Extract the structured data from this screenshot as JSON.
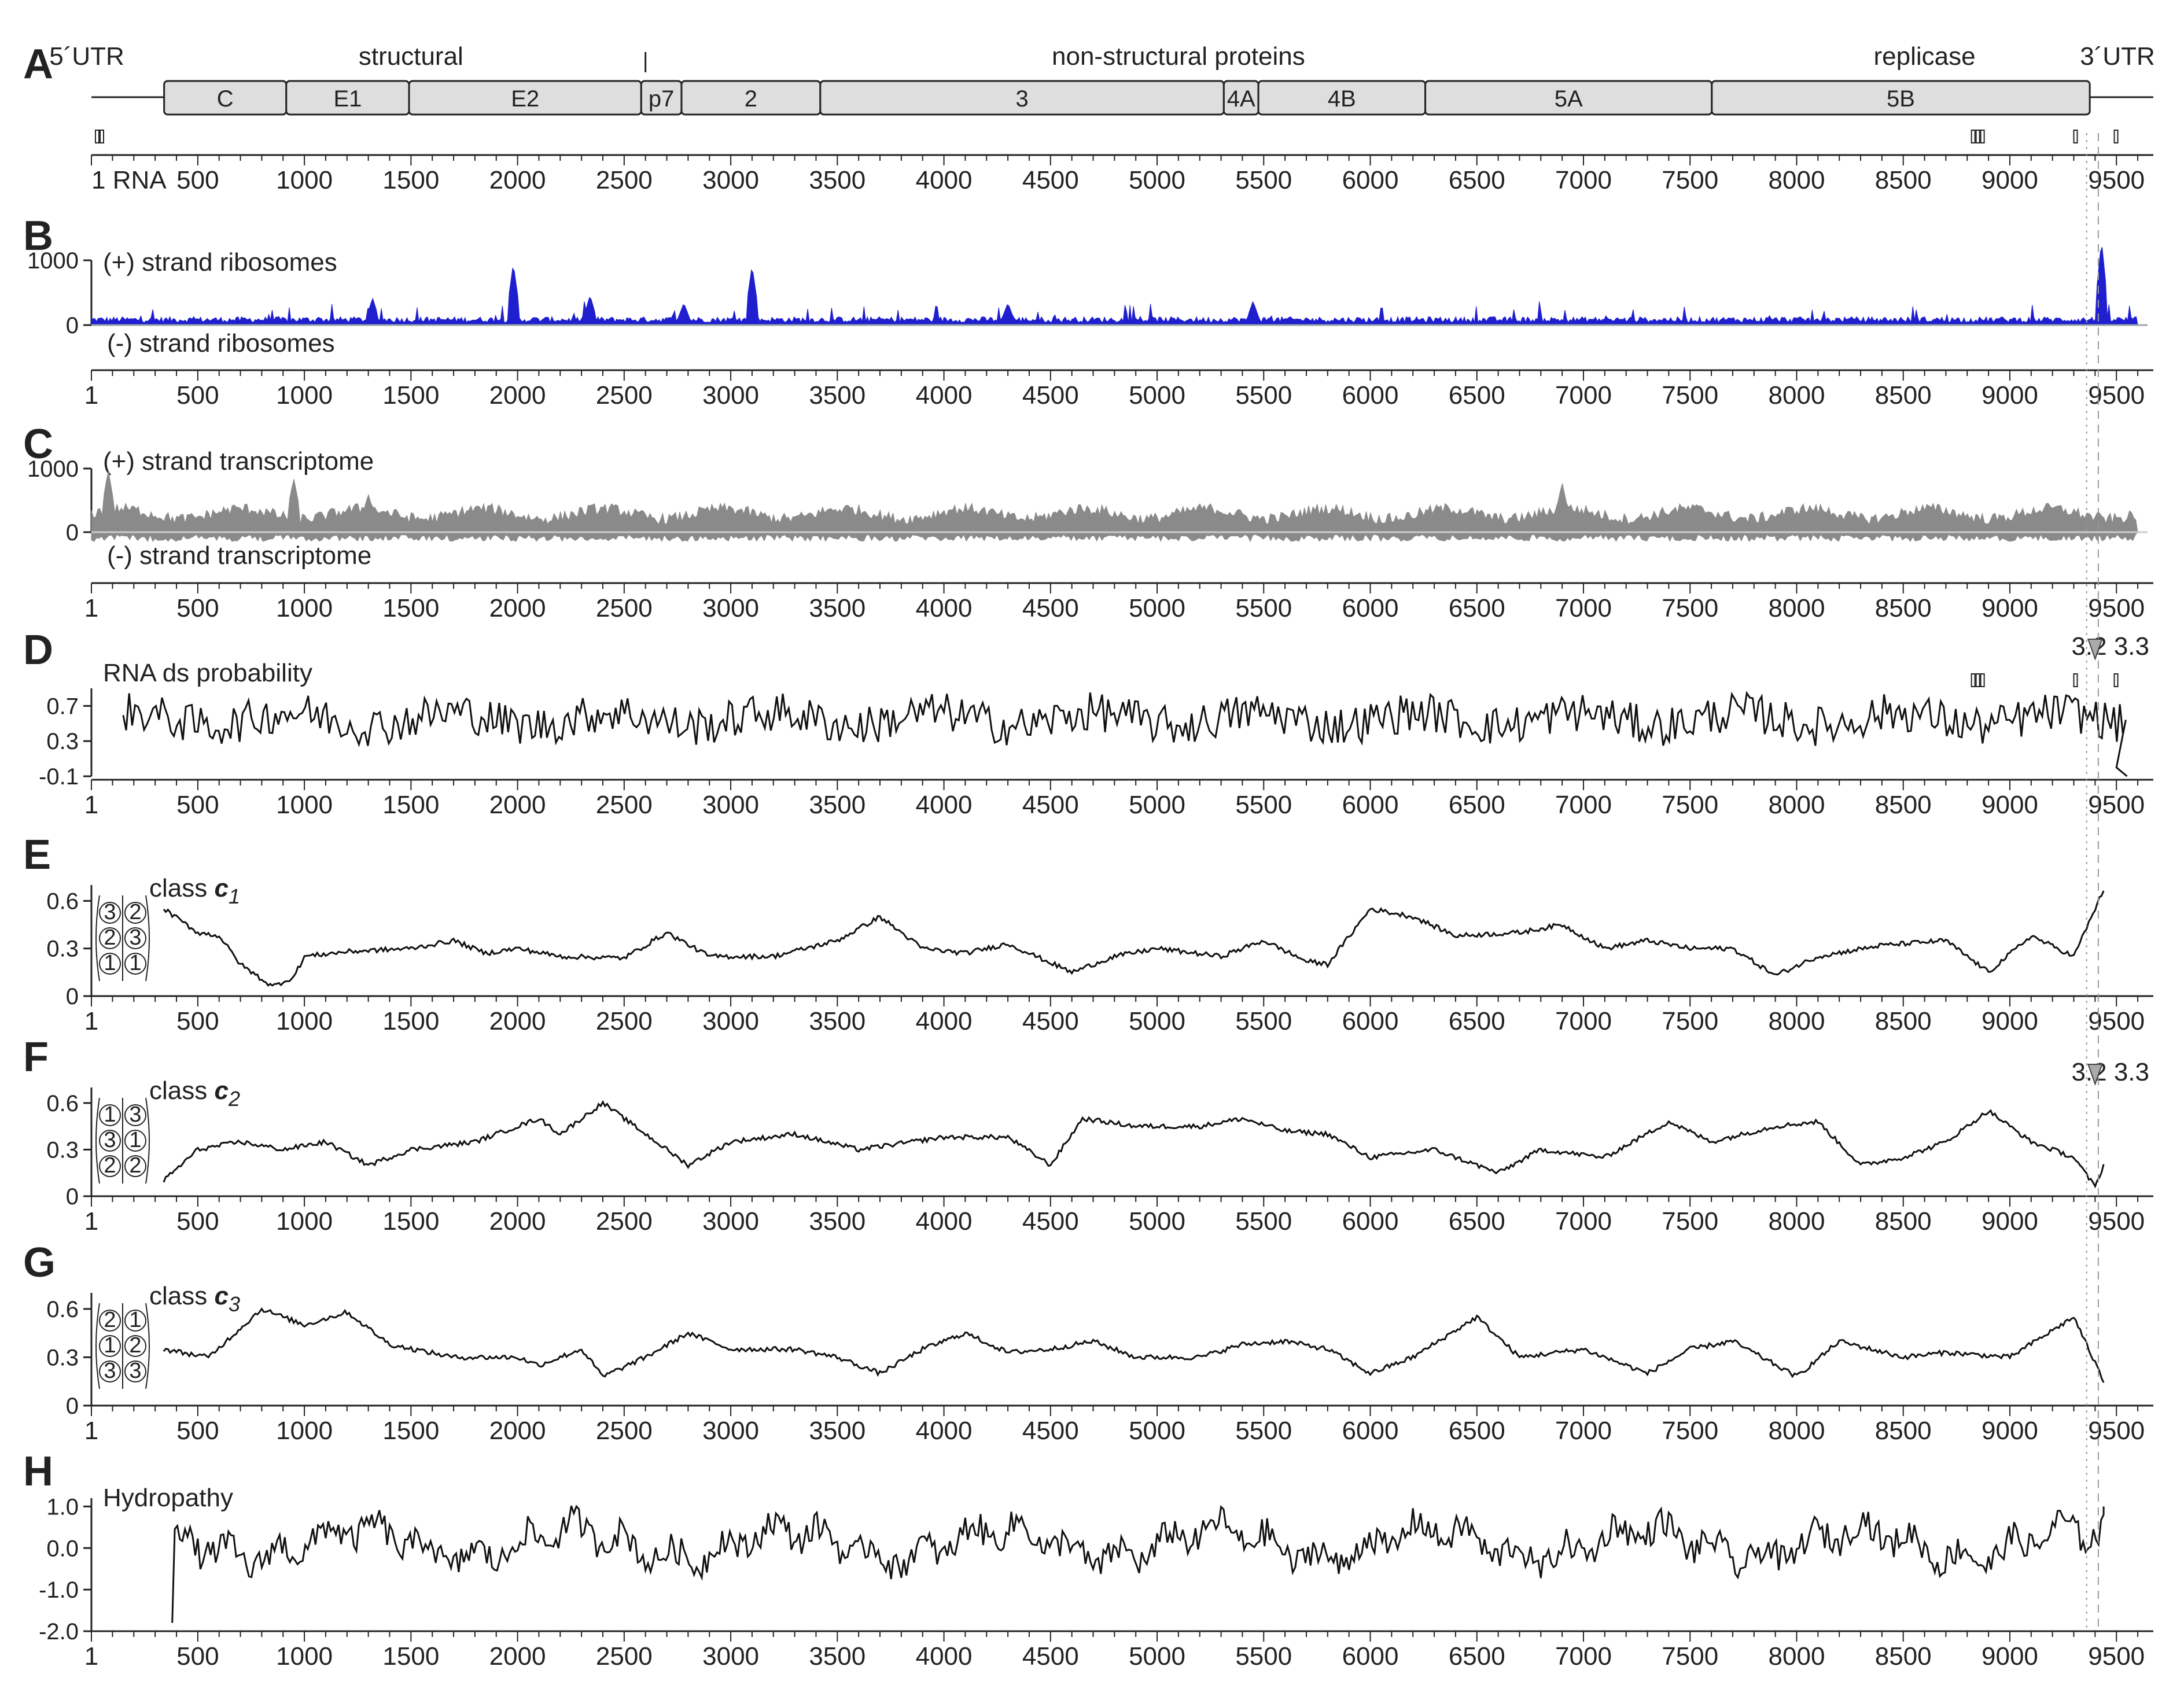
{
  "chart_data": [
    {
      "panel": "A",
      "type": "genome-map",
      "top_labels": [
        {
          "text": "5´UTR",
          "x": 150
        },
        {
          "text": "structural",
          "x": 1500
        },
        {
          "text": "non-structural proteins",
          "x": 5100
        },
        {
          "text": "replicase",
          "x": 8600
        },
        {
          "text": "3´UTR",
          "x": 9500
        }
      ],
      "genes": [
        {
          "name": "C",
          "start": 342,
          "end": 915
        },
        {
          "name": "E1",
          "start": 915,
          "end": 1491
        },
        {
          "name": "E2",
          "start": 1491,
          "end": 2580
        },
        {
          "name": "p7",
          "start": 2580,
          "end": 2769
        },
        {
          "name": "2",
          "start": 2769,
          "end": 3420
        },
        {
          "name": "3",
          "start": 3420,
          "end": 5313
        },
        {
          "name": "4A",
          "start": 5313,
          "end": 5475
        },
        {
          "name": "4B",
          "start": 5475,
          "end": 6258
        },
        {
          "name": "5A",
          "start": 6258,
          "end": 7602
        },
        {
          "name": "5B",
          "start": 7602,
          "end": 9375
        }
      ],
      "genome_length": 9646,
      "axis_label_first": "1 RNA",
      "ticks": [
        500,
        1000,
        1500,
        2000,
        2500,
        3000,
        3500,
        4000,
        4500,
        5000,
        5500,
        6000,
        6500,
        7000,
        7500,
        8000,
        8500,
        9000,
        9500
      ]
    },
    {
      "panel": "B",
      "type": "area",
      "series": [
        {
          "name": "(+) strand ribosomes"
        },
        {
          "name": "(-) strand ribosomes"
        }
      ],
      "yticks": [
        "1000",
        "0"
      ],
      "ylim": [
        0,
        1000
      ],
      "color": "#1f1fd0",
      "peaks": [
        [
          1320,
          420
        ],
        [
          1980,
          950
        ],
        [
          2340,
          460
        ],
        [
          2780,
          340
        ],
        [
          3100,
          920
        ],
        [
          4300,
          340
        ],
        [
          5450,
          370
        ],
        [
          9430,
          1300
        ]
      ]
    },
    {
      "panel": "C",
      "type": "area",
      "series": [
        {
          "name": "(+) strand transcriptome"
        },
        {
          "name": "(-) strand transcriptome"
        }
      ],
      "yticks": [
        "1000",
        "0"
      ],
      "ylim": [
        0,
        1000
      ],
      "color": "#8a8a8a",
      "peaks": [
        [
          80,
          980
        ],
        [
          950,
          850
        ],
        [
          1300,
          600
        ],
        [
          6900,
          780
        ]
      ]
    },
    {
      "panel": "D",
      "type": "line",
      "series": [
        {
          "name": "RNA ds probability"
        }
      ],
      "yticks": [
        "0.7",
        "0.3",
        "-0.1"
      ],
      "ylim": [
        -0.1,
        0.9
      ],
      "range": [
        150,
        9550
      ],
      "annotation": "3.2 3.3"
    },
    {
      "panel": "E",
      "type": "line",
      "series": [
        {
          "name": "class c1"
        }
      ],
      "yticks": [
        "0.6",
        "0.3",
        "0"
      ],
      "ylim": [
        0,
        0.7
      ],
      "range": [
        340,
        9440
      ],
      "points": [
        [
          340,
          0.55
        ],
        [
          500,
          0.4
        ],
        [
          600,
          0.38
        ],
        [
          700,
          0.2
        ],
        [
          850,
          0.06
        ],
        [
          950,
          0.12
        ],
        [
          1000,
          0.25
        ],
        [
          1200,
          0.28
        ],
        [
          1500,
          0.3
        ],
        [
          1700,
          0.35
        ],
        [
          1850,
          0.27
        ],
        [
          2000,
          0.3
        ],
        [
          2200,
          0.25
        ],
        [
          2500,
          0.24
        ],
        [
          2700,
          0.4
        ],
        [
          2900,
          0.25
        ],
        [
          3200,
          0.25
        ],
        [
          3500,
          0.35
        ],
        [
          3700,
          0.5
        ],
        [
          3900,
          0.3
        ],
        [
          4100,
          0.27
        ],
        [
          4300,
          0.33
        ],
        [
          4600,
          0.15
        ],
        [
          4800,
          0.25
        ],
        [
          5000,
          0.3
        ],
        [
          5300,
          0.25
        ],
        [
          5500,
          0.35
        ],
        [
          5700,
          0.22
        ],
        [
          5800,
          0.2
        ],
        [
          6000,
          0.55
        ],
        [
          6200,
          0.5
        ],
        [
          6400,
          0.38
        ],
        [
          6700,
          0.4
        ],
        [
          6900,
          0.45
        ],
        [
          7100,
          0.3
        ],
        [
          7300,
          0.35
        ],
        [
          7500,
          0.3
        ],
        [
          7700,
          0.3
        ],
        [
          7900,
          0.13
        ],
        [
          8100,
          0.25
        ],
        [
          8400,
          0.32
        ],
        [
          8700,
          0.35
        ],
        [
          8900,
          0.15
        ],
        [
          9100,
          0.38
        ],
        [
          9300,
          0.25
        ],
        [
          9440,
          0.67
        ]
      ],
      "annotation": [
        "class c1"
      ]
    },
    {
      "panel": "F",
      "type": "line",
      "series": [
        {
          "name": "class c2"
        }
      ],
      "yticks": [
        "0.6",
        "0.3",
        "0"
      ],
      "ylim": [
        0,
        0.7
      ],
      "range": [
        340,
        9440
      ],
      "points": [
        [
          340,
          0.1
        ],
        [
          500,
          0.3
        ],
        [
          700,
          0.35
        ],
        [
          900,
          0.3
        ],
        [
          1100,
          0.35
        ],
        [
          1300,
          0.2
        ],
        [
          1500,
          0.3
        ],
        [
          1800,
          0.35
        ],
        [
          2100,
          0.5
        ],
        [
          2200,
          0.4
        ],
        [
          2400,
          0.6
        ],
        [
          2600,
          0.4
        ],
        [
          2800,
          0.2
        ],
        [
          3000,
          0.35
        ],
        [
          3300,
          0.4
        ],
        [
          3600,
          0.3
        ],
        [
          4000,
          0.38
        ],
        [
          4300,
          0.38
        ],
        [
          4500,
          0.2
        ],
        [
          4650,
          0.5
        ],
        [
          4900,
          0.45
        ],
        [
          5200,
          0.45
        ],
        [
          5400,
          0.5
        ],
        [
          5600,
          0.42
        ],
        [
          5800,
          0.4
        ],
        [
          6000,
          0.25
        ],
        [
          6300,
          0.3
        ],
        [
          6600,
          0.15
        ],
        [
          6800,
          0.3
        ],
        [
          7100,
          0.25
        ],
        [
          7400,
          0.48
        ],
        [
          7600,
          0.35
        ],
        [
          7900,
          0.45
        ],
        [
          8100,
          0.48
        ],
        [
          8300,
          0.2
        ],
        [
          8500,
          0.25
        ],
        [
          8700,
          0.35
        ],
        [
          8900,
          0.55
        ],
        [
          9100,
          0.35
        ],
        [
          9300,
          0.25
        ],
        [
          9400,
          0.06
        ],
        [
          9440,
          0.2
        ]
      ],
      "annotation": "3.2 3.3"
    },
    {
      "panel": "G",
      "type": "line",
      "series": [
        {
          "name": "class c3"
        }
      ],
      "yticks": [
        "0.6",
        "0.3",
        "0"
      ],
      "ylim": [
        0,
        0.7
      ],
      "range": [
        340,
        9440
      ],
      "points": [
        [
          340,
          0.35
        ],
        [
          550,
          0.3
        ],
        [
          800,
          0.6
        ],
        [
          1000,
          0.5
        ],
        [
          1200,
          0.58
        ],
        [
          1400,
          0.38
        ],
        [
          1700,
          0.3
        ],
        [
          2000,
          0.3
        ],
        [
          2100,
          0.25
        ],
        [
          2300,
          0.35
        ],
        [
          2400,
          0.18
        ],
        [
          2600,
          0.3
        ],
        [
          2800,
          0.45
        ],
        [
          3000,
          0.35
        ],
        [
          3300,
          0.35
        ],
        [
          3500,
          0.3
        ],
        [
          3700,
          0.2
        ],
        [
          3900,
          0.35
        ],
        [
          4100,
          0.45
        ],
        [
          4300,
          0.33
        ],
        [
          4500,
          0.35
        ],
        [
          4700,
          0.4
        ],
        [
          4900,
          0.3
        ],
        [
          5200,
          0.3
        ],
        [
          5400,
          0.38
        ],
        [
          5600,
          0.4
        ],
        [
          5800,
          0.35
        ],
        [
          6000,
          0.2
        ],
        [
          6200,
          0.3
        ],
        [
          6500,
          0.55
        ],
        [
          6700,
          0.3
        ],
        [
          7000,
          0.35
        ],
        [
          7300,
          0.2
        ],
        [
          7500,
          0.35
        ],
        [
          7700,
          0.4
        ],
        [
          8000,
          0.18
        ],
        [
          8200,
          0.4
        ],
        [
          8500,
          0.3
        ],
        [
          8700,
          0.33
        ],
        [
          9000,
          0.3
        ],
        [
          9300,
          0.55
        ],
        [
          9440,
          0.15
        ]
      ],
      "annotation": [
        "class c3"
      ]
    },
    {
      "panel": "H",
      "type": "line",
      "series": [
        {
          "name": "Hydropathy"
        }
      ],
      "yticks": [
        "1.0",
        "0.0",
        "-1.0",
        "-2.0"
      ],
      "ylim": [
        -2.0,
        1.2
      ],
      "range": [
        380,
        9440
      ]
    }
  ],
  "x_axis": {
    "first_label": "1",
    "ticks": [
      "500",
      "1000",
      "1500",
      "2000",
      "2500",
      "3000",
      "3500",
      "4000",
      "4500",
      "5000",
      "5500",
      "6000",
      "6500",
      "7000",
      "7500",
      "8000",
      "8500",
      "9000",
      "9500"
    ]
  }
}
